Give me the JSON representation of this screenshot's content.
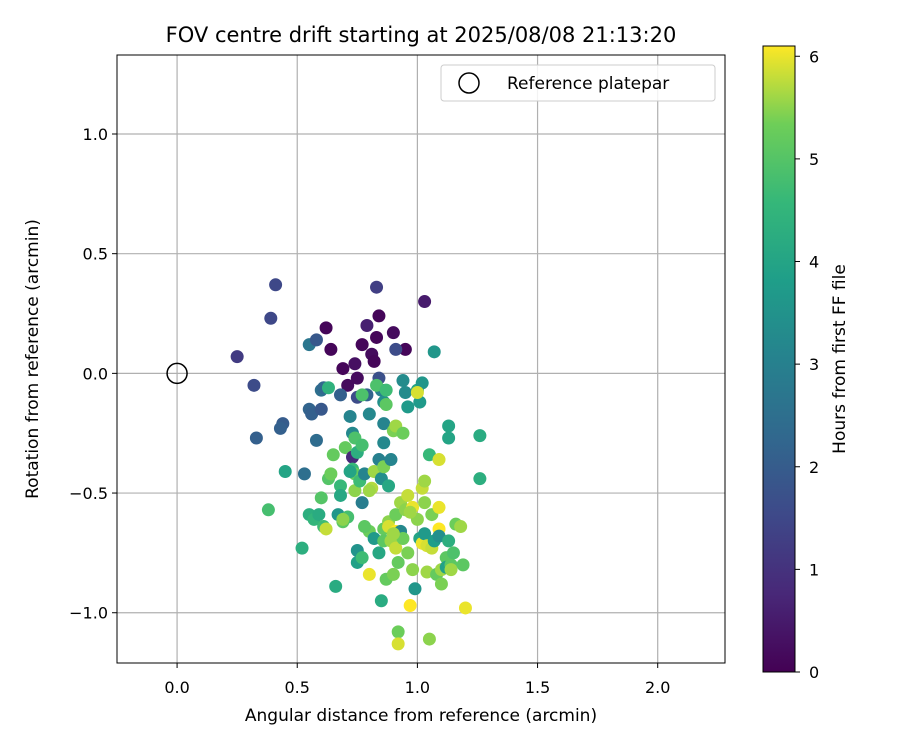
{
  "chart_data": {
    "type": "scatter",
    "title": "FOV centre drift starting at 2025/08/08 21:13:20",
    "xlabel": "Angular distance from reference (arcmin)",
    "ylabel": "Rotation from reference (arcmin)",
    "xlim": [
      -0.25,
      2.28
    ],
    "ylim": [
      -1.21,
      1.33
    ],
    "xticks": [
      0.0,
      0.5,
      1.0,
      1.5,
      2.0
    ],
    "xtick_labels": [
      "0.0",
      "0.5",
      "1.0",
      "1.5",
      "2.0"
    ],
    "yticks": [
      -1.0,
      -0.5,
      0.0,
      0.5,
      1.0
    ],
    "ytick_labels": [
      "−1.0",
      "−0.5",
      "0.0",
      "0.5",
      "1.0"
    ],
    "grid": true,
    "legend": {
      "position": "top-right",
      "entries": [
        "Reference platepar"
      ]
    },
    "reference_point": {
      "x": 0.0,
      "y": 0.0
    },
    "colorbar": {
      "label": "Hours from first FF file",
      "colormap": "viridis",
      "range": [
        0,
        6.1
      ],
      "ticks": [
        0,
        1,
        2,
        3,
        4,
        5,
        6
      ],
      "tick_labels": [
        "0",
        "1",
        "2",
        "3",
        "4",
        "5",
        "6"
      ]
    },
    "points": [
      {
        "x": 0.62,
        "y": 0.19,
        "c": 0.1
      },
      {
        "x": 0.64,
        "y": 0.1,
        "c": 0.1
      },
      {
        "x": 0.69,
        "y": 0.02,
        "c": 0.1
      },
      {
        "x": 0.71,
        "y": -0.05,
        "c": 0.2
      },
      {
        "x": 0.74,
        "y": 0.04,
        "c": 0.3
      },
      {
        "x": 0.75,
        "y": -0.02,
        "c": 0.2
      },
      {
        "x": 0.77,
        "y": 0.12,
        "c": 0.1
      },
      {
        "x": 0.79,
        "y": 0.2,
        "c": 0.6
      },
      {
        "x": 0.81,
        "y": 0.08,
        "c": 0.2
      },
      {
        "x": 0.82,
        "y": 0.05,
        "c": 0.1
      },
      {
        "x": 0.83,
        "y": 0.15,
        "c": 0.1
      },
      {
        "x": 0.84,
        "y": 0.24,
        "c": 0.1
      },
      {
        "x": 0.9,
        "y": 0.17,
        "c": 0.2
      },
      {
        "x": 0.95,
        "y": 0.1,
        "c": 0.1
      },
      {
        "x": 1.03,
        "y": 0.3,
        "c": 0.5
      },
      {
        "x": 0.83,
        "y": 0.36,
        "c": 1.3
      },
      {
        "x": 0.41,
        "y": 0.37,
        "c": 1.5
      },
      {
        "x": 0.39,
        "y": 0.23,
        "c": 1.5
      },
      {
        "x": 0.25,
        "y": 0.07,
        "c": 1.2
      },
      {
        "x": 0.32,
        "y": -0.05,
        "c": 1.6
      },
      {
        "x": 0.33,
        "y": -0.27,
        "c": 2.1
      },
      {
        "x": 0.44,
        "y": -0.21,
        "c": 2.0
      },
      {
        "x": 0.43,
        "y": -0.23,
        "c": 2.1
      },
      {
        "x": 0.55,
        "y": 0.12,
        "c": 2.7
      },
      {
        "x": 0.58,
        "y": 0.14,
        "c": 1.9
      },
      {
        "x": 0.55,
        "y": -0.15,
        "c": 2.2
      },
      {
        "x": 0.56,
        "y": -0.17,
        "c": 2.1
      },
      {
        "x": 0.6,
        "y": -0.07,
        "c": 2.5
      },
      {
        "x": 0.61,
        "y": -0.06,
        "c": 2.3
      },
      {
        "x": 0.6,
        "y": -0.15,
        "c": 1.9
      },
      {
        "x": 0.58,
        "y": -0.28,
        "c": 2.4
      },
      {
        "x": 0.63,
        "y": -0.06,
        "c": 4.4
      },
      {
        "x": 0.68,
        "y": -0.09,
        "c": 2.1
      },
      {
        "x": 0.72,
        "y": -0.18,
        "c": 3.1
      },
      {
        "x": 0.75,
        "y": -0.1,
        "c": 1.6
      },
      {
        "x": 0.73,
        "y": -0.25,
        "c": 3.2
      },
      {
        "x": 0.79,
        "y": -0.09,
        "c": 2.2
      },
      {
        "x": 0.8,
        "y": -0.17,
        "c": 3.2
      },
      {
        "x": 0.84,
        "y": -0.02,
        "c": 1.7
      },
      {
        "x": 0.85,
        "y": -0.07,
        "c": 3.0
      },
      {
        "x": 0.86,
        "y": -0.12,
        "c": 3.4
      },
      {
        "x": 0.86,
        "y": -0.21,
        "c": 3.1
      },
      {
        "x": 0.86,
        "y": -0.29,
        "c": 3.2
      },
      {
        "x": 0.91,
        "y": 0.1,
        "c": 1.6
      },
      {
        "x": 0.94,
        "y": -0.03,
        "c": 3.3
      },
      {
        "x": 0.95,
        "y": -0.08,
        "c": 3.3
      },
      {
        "x": 0.96,
        "y": -0.14,
        "c": 3.7
      },
      {
        "x": 1.0,
        "y": -0.07,
        "c": 4.0
      },
      {
        "x": 1.02,
        "y": -0.04,
        "c": 3.6
      },
      {
        "x": 1.01,
        "y": -0.12,
        "c": 3.7
      },
      {
        "x": 1.07,
        "y": 0.09,
        "c": 3.6
      },
      {
        "x": 1.13,
        "y": -0.22,
        "c": 4.0
      },
      {
        "x": 1.13,
        "y": -0.27,
        "c": 4.0
      },
      {
        "x": 1.26,
        "y": -0.26,
        "c": 4.2
      },
      {
        "x": 1.26,
        "y": -0.44,
        "c": 4.3
      },
      {
        "x": 1.05,
        "y": -0.34,
        "c": 4.6
      },
      {
        "x": 1.09,
        "y": -0.36,
        "c": 5.9
      },
      {
        "x": 0.45,
        "y": -0.41,
        "c": 4.0
      },
      {
        "x": 0.53,
        "y": -0.42,
        "c": 2.5
      },
      {
        "x": 0.38,
        "y": -0.57,
        "c": 4.8
      },
      {
        "x": 0.52,
        "y": -0.73,
        "c": 4.3
      },
      {
        "x": 0.55,
        "y": -0.59,
        "c": 4.3
      },
      {
        "x": 0.57,
        "y": -0.61,
        "c": 4.5
      },
      {
        "x": 0.59,
        "y": -0.59,
        "c": 4.2
      },
      {
        "x": 0.6,
        "y": -0.52,
        "c": 5.0
      },
      {
        "x": 0.61,
        "y": -0.64,
        "c": 4.7
      },
      {
        "x": 0.62,
        "y": -0.65,
        "c": 5.8
      },
      {
        "x": 0.63,
        "y": -0.44,
        "c": 5.0
      },
      {
        "x": 0.64,
        "y": -0.42,
        "c": 5.3
      },
      {
        "x": 0.65,
        "y": -0.34,
        "c": 5.2
      },
      {
        "x": 0.66,
        "y": -0.89,
        "c": 4.2
      },
      {
        "x": 0.67,
        "y": -0.59,
        "c": 3.6
      },
      {
        "x": 0.68,
        "y": -0.47,
        "c": 4.6
      },
      {
        "x": 0.68,
        "y": -0.51,
        "c": 4.1
      },
      {
        "x": 0.69,
        "y": -0.62,
        "c": 5.1
      },
      {
        "x": 0.7,
        "y": -0.31,
        "c": 5.2
      },
      {
        "x": 0.71,
        "y": -0.6,
        "c": 4.8
      },
      {
        "x": 0.73,
        "y": -0.35,
        "c": 0.8
      },
      {
        "x": 0.73,
        "y": -0.4,
        "c": 4.6
      },
      {
        "x": 0.74,
        "y": -0.27,
        "c": 4.9
      },
      {
        "x": 0.74,
        "y": -0.42,
        "c": 5.2
      },
      {
        "x": 0.74,
        "y": -0.49,
        "c": 5.5
      },
      {
        "x": 0.75,
        "y": -0.33,
        "c": 4.3
      },
      {
        "x": 0.75,
        "y": -0.74,
        "c": 3.5
      },
      {
        "x": 0.75,
        "y": -0.79,
        "c": 3.9
      },
      {
        "x": 0.76,
        "y": -0.45,
        "c": 4.7
      },
      {
        "x": 0.77,
        "y": -0.09,
        "c": 4.9
      },
      {
        "x": 0.77,
        "y": -0.3,
        "c": 4.8
      },
      {
        "x": 0.77,
        "y": -0.54,
        "c": 2.9
      },
      {
        "x": 0.77,
        "y": -0.77,
        "c": 4.7
      },
      {
        "x": 0.78,
        "y": -0.42,
        "c": 3.1
      },
      {
        "x": 0.8,
        "y": -0.66,
        "c": 5.3
      },
      {
        "x": 0.8,
        "y": -0.84,
        "c": 6.0
      },
      {
        "x": 0.81,
        "y": -0.48,
        "c": 5.7
      },
      {
        "x": 0.82,
        "y": -0.69,
        "c": 3.7
      },
      {
        "x": 0.82,
        "y": -0.41,
        "c": 5.6
      },
      {
        "x": 0.83,
        "y": -0.05,
        "c": 4.9
      },
      {
        "x": 0.84,
        "y": -0.36,
        "c": 3.0
      },
      {
        "x": 0.84,
        "y": -0.75,
        "c": 4.1
      },
      {
        "x": 0.85,
        "y": -0.95,
        "c": 4.2
      },
      {
        "x": 0.85,
        "y": -0.44,
        "c": 3.4
      },
      {
        "x": 0.86,
        "y": -0.39,
        "c": 5.4
      },
      {
        "x": 0.86,
        "y": -0.65,
        "c": 5.2
      },
      {
        "x": 0.86,
        "y": -0.7,
        "c": 5.1
      },
      {
        "x": 0.87,
        "y": -0.13,
        "c": 5.1
      },
      {
        "x": 0.87,
        "y": -0.86,
        "c": 5.2
      },
      {
        "x": 0.87,
        "y": -0.07,
        "c": 4.7
      },
      {
        "x": 0.88,
        "y": -0.62,
        "c": 5.5
      },
      {
        "x": 0.88,
        "y": -0.47,
        "c": 4.1
      },
      {
        "x": 0.88,
        "y": -0.64,
        "c": 5.9
      },
      {
        "x": 0.89,
        "y": -0.36,
        "c": 3.1
      },
      {
        "x": 0.89,
        "y": -0.7,
        "c": 5.6
      },
      {
        "x": 0.9,
        "y": -0.24,
        "c": 5.4
      },
      {
        "x": 0.9,
        "y": -0.84,
        "c": 5.4
      },
      {
        "x": 0.91,
        "y": -0.59,
        "c": 5.3
      },
      {
        "x": 0.91,
        "y": -0.66,
        "c": 6.1
      },
      {
        "x": 0.91,
        "y": -0.22,
        "c": 5.6
      },
      {
        "x": 0.91,
        "y": -0.73,
        "c": 5.8
      },
      {
        "x": 0.92,
        "y": -0.79,
        "c": 5.2
      },
      {
        "x": 0.92,
        "y": -1.08,
        "c": 5.3
      },
      {
        "x": 0.92,
        "y": -1.13,
        "c": 5.9
      },
      {
        "x": 0.93,
        "y": -0.54,
        "c": 5.6
      },
      {
        "x": 0.93,
        "y": -0.66,
        "c": 3.2
      },
      {
        "x": 0.94,
        "y": -0.25,
        "c": 5.3
      },
      {
        "x": 0.94,
        "y": -0.69,
        "c": 5.3
      },
      {
        "x": 0.95,
        "y": -0.57,
        "c": 5.5
      },
      {
        "x": 0.96,
        "y": -0.51,
        "c": 5.8
      },
      {
        "x": 0.97,
        "y": -0.97,
        "c": 6.1
      },
      {
        "x": 0.98,
        "y": -0.56,
        "c": 6.0
      },
      {
        "x": 0.98,
        "y": -0.82,
        "c": 5.5
      },
      {
        "x": 0.99,
        "y": -0.9,
        "c": 3.6
      },
      {
        "x": 1.0,
        "y": -0.08,
        "c": 5.9
      },
      {
        "x": 1.0,
        "y": -0.61,
        "c": 5.5
      },
      {
        "x": 1.01,
        "y": -0.69,
        "c": 4.0
      },
      {
        "x": 1.02,
        "y": -0.48,
        "c": 5.8
      },
      {
        "x": 1.02,
        "y": -0.71,
        "c": 6.0
      },
      {
        "x": 1.03,
        "y": -0.45,
        "c": 5.6
      },
      {
        "x": 1.03,
        "y": -0.54,
        "c": 5.5
      },
      {
        "x": 1.03,
        "y": -0.67,
        "c": 3.7
      },
      {
        "x": 1.04,
        "y": -0.72,
        "c": 5.9
      },
      {
        "x": 1.04,
        "y": -0.83,
        "c": 5.6
      },
      {
        "x": 1.05,
        "y": -1.11,
        "c": 5.5
      },
      {
        "x": 1.06,
        "y": -0.59,
        "c": 5.4
      },
      {
        "x": 1.06,
        "y": -0.73,
        "c": 5.8
      },
      {
        "x": 1.07,
        "y": -0.7,
        "c": 3.8
      },
      {
        "x": 1.08,
        "y": -0.84,
        "c": 5.2
      },
      {
        "x": 1.09,
        "y": -0.56,
        "c": 6.0
      },
      {
        "x": 1.09,
        "y": -0.65,
        "c": 6.1
      },
      {
        "x": 1.09,
        "y": -0.68,
        "c": 3.4
      },
      {
        "x": 1.1,
        "y": -0.82,
        "c": 5.6
      },
      {
        "x": 1.1,
        "y": -0.88,
        "c": 5.4
      },
      {
        "x": 1.12,
        "y": -0.77,
        "c": 5.1
      },
      {
        "x": 1.12,
        "y": -0.81,
        "c": 3.9
      },
      {
        "x": 1.13,
        "y": -0.7,
        "c": 4.3
      },
      {
        "x": 1.14,
        "y": -0.8,
        "c": 5.1
      },
      {
        "x": 1.14,
        "y": -0.82,
        "c": 5.6
      },
      {
        "x": 1.15,
        "y": -0.75,
        "c": 4.9
      },
      {
        "x": 1.16,
        "y": -0.63,
        "c": 5.3
      },
      {
        "x": 1.18,
        "y": -0.64,
        "c": 5.6
      },
      {
        "x": 1.19,
        "y": -0.8,
        "c": 5.1
      },
      {
        "x": 1.2,
        "y": -0.98,
        "c": 6.0
      },
      {
        "x": 0.78,
        "y": -0.64,
        "c": 5.1
      },
      {
        "x": 0.69,
        "y": -0.61,
        "c": 5.5
      },
      {
        "x": 0.72,
        "y": -0.41,
        "c": 4.0
      },
      {
        "x": 0.97,
        "y": -0.58,
        "c": 5.6
      },
      {
        "x": 0.8,
        "y": -0.49,
        "c": 5.6
      },
      {
        "x": 0.9,
        "y": -0.67,
        "c": 5.6
      },
      {
        "x": 0.96,
        "y": -0.75,
        "c": 5.4
      }
    ]
  }
}
